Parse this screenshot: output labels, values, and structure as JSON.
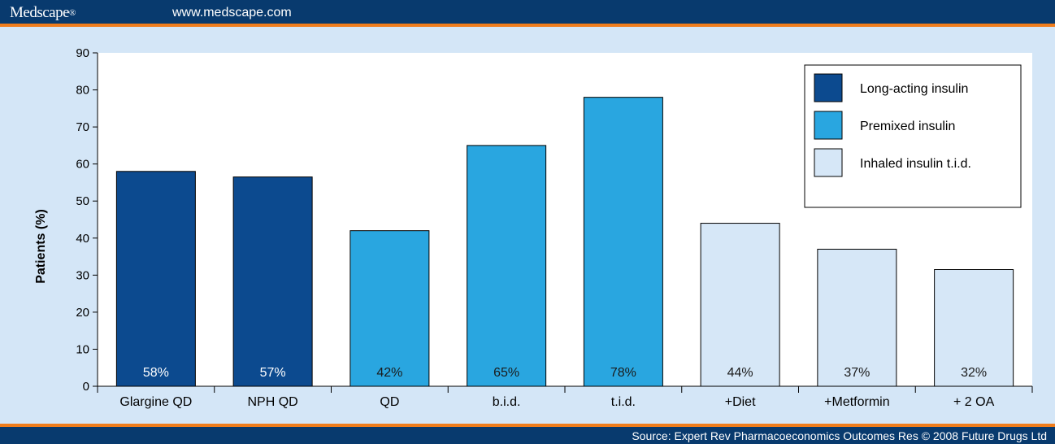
{
  "header": {
    "brand": "Medscape",
    "brand_mark": "®",
    "url": "www.medscape.com"
  },
  "footer": {
    "source": "Source: Expert Rev Pharmacoeconomics Outcomes Res © 2008 Future Drugs Ltd"
  },
  "colors": {
    "long_acting": "#0c4a8f",
    "premixed": "#29a6e0",
    "inhaled": "#d6e7f7",
    "header_bg": "#083a6e",
    "accent": "#f07d1c",
    "panel_bg": "#d4e6f7"
  },
  "chart_data": {
    "type": "bar",
    "ylabel": "Patients (%)",
    "xlabel": "",
    "ylim": [
      0,
      90
    ],
    "yticks": [
      0,
      10,
      20,
      30,
      40,
      50,
      60,
      70,
      80,
      90
    ],
    "categories": [
      "Glargine QD",
      "NPH QD",
      "QD",
      "b.i.d.",
      "t.i.d.",
      "+Diet",
      "+Metformin",
      "+ 2 OA"
    ],
    "values": [
      58,
      56.5,
      42,
      65,
      78,
      44,
      37,
      31.5
    ],
    "data_labels": [
      "58%",
      "57%",
      "42%",
      "65%",
      "78%",
      "44%",
      "37%",
      "32%"
    ],
    "bar_series": [
      0,
      0,
      1,
      1,
      1,
      2,
      2,
      2
    ],
    "series": [
      {
        "name": "Long-acting insulin",
        "color": "#0c4a8f"
      },
      {
        "name": "Premixed insulin",
        "color": "#29a6e0"
      },
      {
        "name": "Inhaled insulin t.i.d.",
        "color": "#d6e7f7"
      }
    ],
    "legend_position": "top-right",
    "grid": false
  }
}
